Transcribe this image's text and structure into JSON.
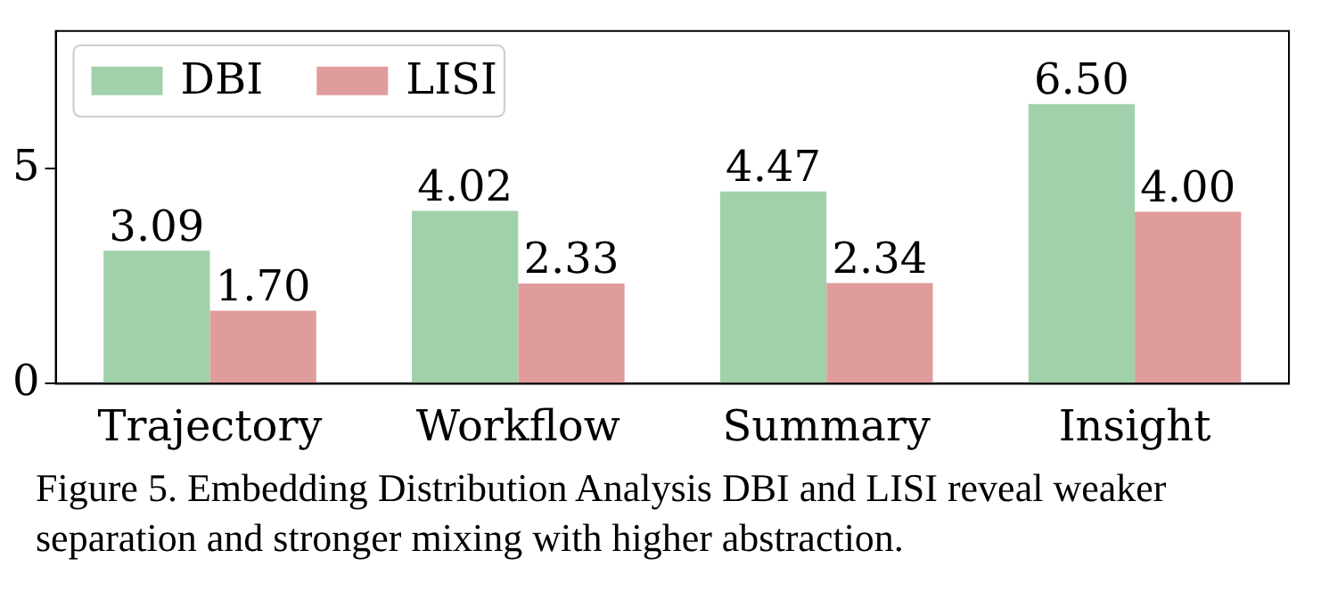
{
  "chart_data": {
    "type": "bar",
    "categories": [
      "Trajectory",
      "Workflow",
      "Summary",
      "Insight"
    ],
    "series": [
      {
        "name": "DBI",
        "color": "#a1d1aa",
        "values": [
          3.09,
          4.02,
          4.47,
          6.5
        ]
      },
      {
        "name": "LISI",
        "color": "#e09c9c",
        "values": [
          1.7,
          2.33,
          2.34,
          4.0
        ]
      }
    ],
    "value_labels": [
      [
        "3.09",
        "4.02",
        "4.47",
        "6.50"
      ],
      [
        "1.70",
        "2.33",
        "2.34",
        "4.00"
      ]
    ],
    "ylim": [
      0,
      8.2
    ],
    "yticks": [
      0,
      5
    ],
    "grid": false,
    "legend": "top left",
    "annotations": [
      "Figure 5. Embedding Distribution Analysis DBI and LISI reveal weaker separation and stronger mixing with higher abstraction."
    ]
  }
}
